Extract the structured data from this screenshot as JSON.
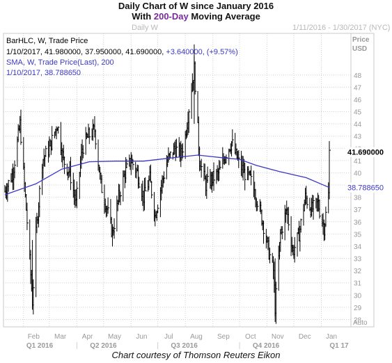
{
  "header": {
    "title_line1": "Daily Chart of W since January 2016",
    "title_line2_pre": "With ",
    "title_line2_hl": "200-Day",
    "title_line2_post": " Moving Average",
    "chart_name": "Daily W",
    "date_range": "1/11/2016 - 1/30/2017 (NYC)"
  },
  "caption": "Chart courtesy of Thomson Reuters Eikon",
  "colors": {
    "bars": "#000000",
    "sma": "#3a37c8",
    "highlight": "#7a2a9a",
    "grid": "#d0d0d0",
    "axis_text": "#999999"
  },
  "chart_data": {
    "type": "line",
    "legend": {
      "line1": "BarHLC, W, Trade Price",
      "line2_prefix": "1/10/2017, 41.980000, 37.950000, 41.690000, ",
      "line2_change": "+3.640000, (+9.57%)",
      "line3": "SMA, W, Trade Price(Last),  200",
      "line4": "1/10/2017, 38.788650"
    },
    "y_axis_title": [
      "Price",
      "USD"
    ],
    "y_ticks": [
      28,
      29,
      30,
      31,
      32,
      33,
      34,
      35,
      36,
      37,
      38,
      39,
      40,
      41,
      42,
      43,
      44,
      45,
      46,
      47,
      48
    ],
    "ylim": [
      27.4,
      51.4
    ],
    "y_unit_label": "Auto",
    "x_months": [
      "Feb",
      "Mar",
      "Apr",
      "May",
      "Jun",
      "Jul",
      "Aug",
      "Sep",
      "Oct",
      "Nov",
      "Dec",
      "Jan"
    ],
    "x_quarters": [
      "Q1 2016",
      "Q2 2016",
      "Q3 2016",
      "Q4 2016",
      "Q1 17"
    ],
    "last_price_label": "41.690000",
    "sma_label": "38.788650",
    "price_anchors": [
      [
        "2016-01-11",
        38.5
      ],
      [
        "2016-01-20",
        40
      ],
      [
        "2016-01-28",
        44
      ],
      [
        "2016-02-05",
        36
      ],
      [
        "2016-02-11",
        29.5
      ],
      [
        "2016-02-15",
        35
      ],
      [
        "2016-02-22",
        41
      ],
      [
        "2016-03-01",
        42
      ],
      [
        "2016-03-10",
        44
      ],
      [
        "2016-03-17",
        41
      ],
      [
        "2016-03-24",
        40
      ],
      [
        "2016-03-31",
        37.5
      ],
      [
        "2016-04-07",
        42
      ],
      [
        "2016-04-14",
        43
      ],
      [
        "2016-04-21",
        43.5
      ],
      [
        "2016-04-28",
        39
      ],
      [
        "2016-05-05",
        37
      ],
      [
        "2016-05-11",
        35
      ],
      [
        "2016-05-18",
        38
      ],
      [
        "2016-05-25",
        40
      ],
      [
        "2016-06-01",
        41
      ],
      [
        "2016-06-08",
        40
      ],
      [
        "2016-06-15",
        38
      ],
      [
        "2016-06-22",
        39.5
      ],
      [
        "2016-06-28",
        36.5
      ],
      [
        "2016-07-05",
        39
      ],
      [
        "2016-07-12",
        41
      ],
      [
        "2016-07-20",
        42
      ],
      [
        "2016-07-27",
        41.5
      ],
      [
        "2016-08-01",
        43
      ],
      [
        "2016-08-08",
        47
      ],
      [
        "2016-08-11",
        48.5
      ],
      [
        "2016-08-17",
        41
      ],
      [
        "2016-08-24",
        39
      ],
      [
        "2016-08-31",
        39.5
      ],
      [
        "2016-09-08",
        40
      ],
      [
        "2016-09-15",
        41.5
      ],
      [
        "2016-09-22",
        42.5
      ],
      [
        "2016-09-29",
        41
      ],
      [
        "2016-10-06",
        40
      ],
      [
        "2016-10-13",
        39.5
      ],
      [
        "2016-10-20",
        38
      ],
      [
        "2016-10-27",
        36
      ],
      [
        "2016-11-03",
        33.5
      ],
      [
        "2016-11-08",
        32
      ],
      [
        "2016-11-10",
        29
      ],
      [
        "2016-11-16",
        35
      ],
      [
        "2016-11-23",
        37
      ],
      [
        "2016-11-30",
        33.5
      ],
      [
        "2016-12-07",
        35
      ],
      [
        "2016-12-14",
        38
      ],
      [
        "2016-12-21",
        37
      ],
      [
        "2016-12-28",
        37.5
      ],
      [
        "2017-01-04",
        35.5
      ],
      [
        "2017-01-09",
        38.2
      ],
      [
        "2017-01-10",
        41.69
      ]
    ],
    "sma_anchors": [
      [
        "2016-01-11",
        38.2
      ],
      [
        "2016-02-15",
        39.1
      ],
      [
        "2016-03-15",
        40.3
      ],
      [
        "2016-04-15",
        40.9
      ],
      [
        "2016-05-15",
        40.95
      ],
      [
        "2016-06-15",
        40.95
      ],
      [
        "2016-07-15",
        41.2
      ],
      [
        "2016-08-15",
        41.45
      ],
      [
        "2016-09-15",
        41.2
      ],
      [
        "2016-10-01",
        41.1
      ],
      [
        "2016-10-20",
        40.6
      ],
      [
        "2016-11-15",
        40.1
      ],
      [
        "2016-12-15",
        39.6
      ],
      [
        "2017-01-10",
        38.79
      ]
    ]
  }
}
